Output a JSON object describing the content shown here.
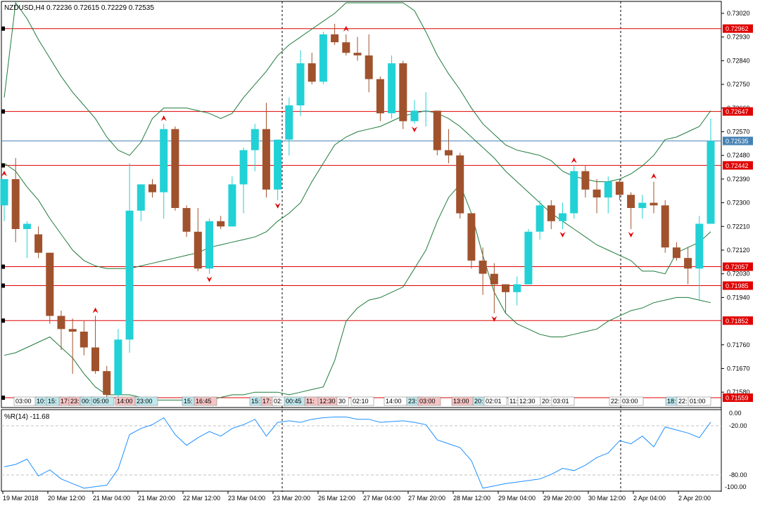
{
  "header": {
    "symbol_text": "NZDUSD,H4  0.72236 0.72615 0.72229 0.72535"
  },
  "indicator": {
    "label": "%R(14) -11.68",
    "scale_labels": [
      "0.00",
      "-20.00",
      "-80.00",
      "-100.00"
    ]
  },
  "colors": {
    "bull": "#22d1d6",
    "bear": "#a0522d",
    "band": "#1f7a3a",
    "hline": "#e00000",
    "bid_line": "#4682b4",
    "wpr_line": "#1e90ff",
    "badge_red": "#e00000",
    "badge_bid": "#4682b4"
  },
  "price_axis": {
    "labels": [
      "0.73020",
      "0.72930",
      "0.72840",
      "0.72750",
      "0.72660",
      "0.72570",
      "0.72480",
      "0.72390",
      "0.72300",
      "0.72210",
      "0.72120",
      "0.72030",
      "0.71940",
      "0.71760",
      "0.71670",
      "0.71580"
    ]
  },
  "badges": [
    {
      "text": "0.72962",
      "kind": "red"
    },
    {
      "text": "0.72647",
      "kind": "red"
    },
    {
      "text": "0.72535",
      "kind": "bid"
    },
    {
      "text": "0.72442",
      "kind": "red"
    },
    {
      "text": "0.72057",
      "kind": "red"
    },
    {
      "text": "0.71985",
      "kind": "red"
    },
    {
      "text": "0.71852",
      "kind": "red"
    },
    {
      "text": "0.71559",
      "kind": "red"
    }
  ],
  "time_axis": {
    "labels": [
      "19 Mar 2018",
      "20 Mar 12:00",
      "21 Mar 04:00",
      "21 Mar 20:00",
      "22 Mar 12:00",
      "23 Mar 04:00",
      "23 Mar 20:00",
      "26 Mar 12:00",
      "27 Mar 04:00",
      "27 Mar 20:00",
      "28 Mar 12:00",
      "29 Mar 04:00",
      "29 Mar 20:00",
      "30 Mar 12:00",
      "2 Apr 04:00",
      "2 Apr 20:00"
    ]
  },
  "session_tags": [
    {
      "text": "03:00",
      "c": "w"
    },
    {
      "text": "10:",
      "c": "b"
    },
    {
      "text": "15:",
      "c": "b"
    },
    {
      "text": "17:",
      "c": "r"
    },
    {
      "text": "23:",
      "c": "r"
    },
    {
      "text": "00:",
      "c": "b"
    },
    {
      "text": "05:00",
      "c": "b"
    },
    {
      "text": "14:00",
      "c": "r"
    },
    {
      "text": "23:00",
      "c": "b"
    },
    {
      "text": "15:",
      "c": "b"
    },
    {
      "text": "16:45",
      "c": "r"
    },
    {
      "text": "15:",
      "c": "b"
    },
    {
      "text": "17:",
      "c": "r"
    },
    {
      "text": "02:",
      "c": "w"
    },
    {
      "text": "00:45",
      "c": "b"
    },
    {
      "text": "11:",
      "c": "r"
    },
    {
      "text": "12:30",
      "c": "r"
    },
    {
      "text": "30",
      "c": "w"
    },
    {
      "text": "02:10",
      "c": "w"
    },
    {
      "text": "14:00",
      "c": "w"
    },
    {
      "text": "23:",
      "c": "b"
    },
    {
      "text": "03:00",
      "c": "r"
    },
    {
      "text": "13:00",
      "c": "r"
    },
    {
      "text": "20:",
      "c": "b"
    },
    {
      "text": "02:01",
      "c": "w"
    },
    {
      "text": "11:",
      "c": "w"
    },
    {
      "text": "12:30",
      "c": "w"
    },
    {
      "text": "20:",
      "c": "w"
    },
    {
      "text": "03:01",
      "c": "w"
    },
    {
      "text": "22:",
      "c": "w"
    },
    {
      "text": "03:00",
      "c": "w"
    },
    {
      "text": "18:",
      "c": "b"
    },
    {
      "text": "22:",
      "c": "w"
    },
    {
      "text": "01:00",
      "c": "w"
    }
  ],
  "chart_data": {
    "type": "candlestick",
    "symbol": "NZDUSD",
    "timeframe": "H4",
    "ylim": [
      0.71535,
      0.7306
    ],
    "horizontal_levels": [
      0.72962,
      0.72647,
      0.72442,
      0.72057,
      0.71985,
      0.71852,
      0.71559
    ],
    "bid": 0.72535,
    "candles": [
      {
        "o": 0.7229,
        "h": 0.7239,
        "l": 0.7223,
        "c": 0.7239
      },
      {
        "o": 0.7239,
        "h": 0.7247,
        "l": 0.7215,
        "c": 0.722
      },
      {
        "o": 0.722,
        "h": 0.7223,
        "l": 0.7209,
        "c": 0.7222
      },
      {
        "o": 0.7218,
        "h": 0.7221,
        "l": 0.7209,
        "c": 0.7211
      },
      {
        "o": 0.7211,
        "h": 0.7211,
        "l": 0.7184,
        "c": 0.7187
      },
      {
        "o": 0.7187,
        "h": 0.7189,
        "l": 0.7174,
        "c": 0.7182
      },
      {
        "o": 0.7182,
        "h": 0.7186,
        "l": 0.7165,
        "c": 0.7181
      },
      {
        "o": 0.7181,
        "h": 0.7185,
        "l": 0.7172,
        "c": 0.7175
      },
      {
        "o": 0.7175,
        "h": 0.7187,
        "l": 0.7165,
        "c": 0.7166
      },
      {
        "o": 0.7166,
        "h": 0.7168,
        "l": 0.7154,
        "c": 0.7157
      },
      {
        "o": 0.7157,
        "h": 0.7182,
        "l": 0.7156,
        "c": 0.7178
      },
      {
        "o": 0.7178,
        "h": 0.7245,
        "l": 0.7173,
        "c": 0.7227
      },
      {
        "o": 0.7227,
        "h": 0.7237,
        "l": 0.7223,
        "c": 0.7237
      },
      {
        "o": 0.7237,
        "h": 0.7239,
        "l": 0.7232,
        "c": 0.7234
      },
      {
        "o": 0.7234,
        "h": 0.726,
        "l": 0.7224,
        "c": 0.7258
      },
      {
        "o": 0.7258,
        "h": 0.7259,
        "l": 0.7227,
        "c": 0.7228
      },
      {
        "o": 0.7228,
        "h": 0.7229,
        "l": 0.7217,
        "c": 0.7219
      },
      {
        "o": 0.7219,
        "h": 0.7228,
        "l": 0.7204,
        "c": 0.7205
      },
      {
        "o": 0.7205,
        "h": 0.7224,
        "l": 0.7203,
        "c": 0.7223
      },
      {
        "o": 0.7223,
        "h": 0.7225,
        "l": 0.722,
        "c": 0.7221
      },
      {
        "o": 0.7221,
        "h": 0.724,
        "l": 0.7221,
        "c": 0.7237
      },
      {
        "o": 0.7237,
        "h": 0.7251,
        "l": 0.7226,
        "c": 0.725
      },
      {
        "o": 0.725,
        "h": 0.726,
        "l": 0.7242,
        "c": 0.7258
      },
      {
        "o": 0.7258,
        "h": 0.7268,
        "l": 0.7232,
        "c": 0.7235
      },
      {
        "o": 0.7235,
        "h": 0.7254,
        "l": 0.7231,
        "c": 0.7254
      },
      {
        "o": 0.7254,
        "h": 0.727,
        "l": 0.7248,
        "c": 0.7267
      },
      {
        "o": 0.7267,
        "h": 0.7288,
        "l": 0.7263,
        "c": 0.7283
      },
      {
        "o": 0.7283,
        "h": 0.7287,
        "l": 0.7275,
        "c": 0.7276
      },
      {
        "o": 0.7276,
        "h": 0.7295,
        "l": 0.7275,
        "c": 0.7294
      },
      {
        "o": 0.7294,
        "h": 0.7298,
        "l": 0.729,
        "c": 0.7291
      },
      {
        "o": 0.7291,
        "h": 0.7294,
        "l": 0.7286,
        "c": 0.7287
      },
      {
        "o": 0.7287,
        "h": 0.7293,
        "l": 0.7284,
        "c": 0.7286
      },
      {
        "o": 0.7286,
        "h": 0.7294,
        "l": 0.7272,
        "c": 0.7277
      },
      {
        "o": 0.7277,
        "h": 0.7278,
        "l": 0.7261,
        "c": 0.7264
      },
      {
        "o": 0.7264,
        "h": 0.7286,
        "l": 0.7262,
        "c": 0.7283
      },
      {
        "o": 0.7283,
        "h": 0.7284,
        "l": 0.7258,
        "c": 0.7261
      },
      {
        "o": 0.7261,
        "h": 0.7269,
        "l": 0.726,
        "c": 0.7265
      },
      {
        "o": 0.7265,
        "h": 0.7272,
        "l": 0.7259,
        "c": 0.7265
      },
      {
        "o": 0.7265,
        "h": 0.7265,
        "l": 0.7248,
        "c": 0.725
      },
      {
        "o": 0.725,
        "h": 0.7258,
        "l": 0.7245,
        "c": 0.7248
      },
      {
        "o": 0.7248,
        "h": 0.7249,
        "l": 0.7224,
        "c": 0.7226
      },
      {
        "o": 0.7226,
        "h": 0.7226,
        "l": 0.7205,
        "c": 0.7208
      },
      {
        "o": 0.7208,
        "h": 0.7213,
        "l": 0.7195,
        "c": 0.7203
      },
      {
        "o": 0.7203,
        "h": 0.7207,
        "l": 0.7188,
        "c": 0.7199
      },
      {
        "o": 0.7199,
        "h": 0.7199,
        "l": 0.7188,
        "c": 0.7196
      },
      {
        "o": 0.7196,
        "h": 0.7202,
        "l": 0.7191,
        "c": 0.7199
      },
      {
        "o": 0.7199,
        "h": 0.722,
        "l": 0.7199,
        "c": 0.7219
      },
      {
        "o": 0.7219,
        "h": 0.7231,
        "l": 0.7216,
        "c": 0.7229
      },
      {
        "o": 0.7229,
        "h": 0.7231,
        "l": 0.722,
        "c": 0.7223
      },
      {
        "o": 0.7223,
        "h": 0.723,
        "l": 0.722,
        "c": 0.7226
      },
      {
        "o": 0.7226,
        "h": 0.7244,
        "l": 0.7224,
        "c": 0.7242
      },
      {
        "o": 0.7242,
        "h": 0.7244,
        "l": 0.7232,
        "c": 0.7235
      },
      {
        "o": 0.7235,
        "h": 0.7239,
        "l": 0.7226,
        "c": 0.7232
      },
      {
        "o": 0.7232,
        "h": 0.724,
        "l": 0.7226,
        "c": 0.7238
      },
      {
        "o": 0.7238,
        "h": 0.7239,
        "l": 0.7231,
        "c": 0.7233
      },
      {
        "o": 0.7233,
        "h": 0.7234,
        "l": 0.722,
        "c": 0.7228
      },
      {
        "o": 0.7228,
        "h": 0.7233,
        "l": 0.7224,
        "c": 0.723
      },
      {
        "o": 0.723,
        "h": 0.7238,
        "l": 0.7226,
        "c": 0.7229
      },
      {
        "o": 0.7229,
        "h": 0.7231,
        "l": 0.7211,
        "c": 0.7213
      },
      {
        "o": 0.7213,
        "h": 0.7215,
        "l": 0.7208,
        "c": 0.7209
      },
      {
        "o": 0.7209,
        "h": 0.7213,
        "l": 0.7199,
        "c": 0.7205
      },
      {
        "o": 0.7205,
        "h": 0.7225,
        "l": 0.7193,
        "c": 0.7222
      },
      {
        "o": 0.7222,
        "h": 0.7262,
        "l": 0.7222,
        "c": 0.72535
      }
    ],
    "bollinger": {
      "upper": [
        0.727,
        0.7308,
        0.73,
        0.7292,
        0.7285,
        0.7278,
        0.7272,
        0.7267,
        0.7262,
        0.7255,
        0.725,
        0.7248,
        0.7253,
        0.7262,
        0.7266,
        0.7266,
        0.7266,
        0.7265,
        0.7264,
        0.7262,
        0.7264,
        0.727,
        0.7275,
        0.728,
        0.7286,
        0.729,
        0.7293,
        0.7296,
        0.7299,
        0.7302,
        0.7307,
        0.731,
        0.7312,
        0.7314,
        0.7316,
        0.7313,
        0.7303,
        0.7295,
        0.7286,
        0.7279,
        0.7273,
        0.7266,
        0.726,
        0.7256,
        0.7252,
        0.725,
        0.7249,
        0.7248,
        0.7246,
        0.7242,
        0.724,
        0.7239,
        0.7238,
        0.7238,
        0.7239,
        0.7241,
        0.7244,
        0.7248,
        0.7254,
        0.7255,
        0.7257,
        0.7259,
        0.7265
      ],
      "middle": [
        0.7245,
        0.7242,
        0.7236,
        0.7231,
        0.7224,
        0.7218,
        0.7212,
        0.7208,
        0.7206,
        0.7205,
        0.7205,
        0.7205,
        0.7206,
        0.7207,
        0.7208,
        0.7209,
        0.721,
        0.7211,
        0.7213,
        0.7214,
        0.7215,
        0.7216,
        0.7217,
        0.7219,
        0.7223,
        0.7226,
        0.723,
        0.7238,
        0.7245,
        0.7252,
        0.7255,
        0.7257,
        0.7258,
        0.7259,
        0.7261,
        0.7263,
        0.7264,
        0.7265,
        0.7264,
        0.7262,
        0.7259,
        0.7255,
        0.7251,
        0.7247,
        0.7242,
        0.7238,
        0.7234,
        0.723,
        0.7226,
        0.7223,
        0.722,
        0.7217,
        0.7214,
        0.7212,
        0.721,
        0.7208,
        0.7204,
        0.7204,
        0.7203,
        0.7211,
        0.7213,
        0.7215,
        0.7219
      ],
      "lower": [
        0.7172,
        0.7173,
        0.7175,
        0.7177,
        0.7179,
        0.7175,
        0.7171,
        0.7165,
        0.716,
        0.7157,
        0.7157,
        0.7157,
        0.7156,
        0.7155,
        0.7155,
        0.7155,
        0.7155,
        0.7155,
        0.7155,
        0.7156,
        0.7157,
        0.7157,
        0.7158,
        0.7158,
        0.7158,
        0.7157,
        0.7158,
        0.7159,
        0.716,
        0.717,
        0.7185,
        0.719,
        0.7193,
        0.7194,
        0.7196,
        0.7198,
        0.7205,
        0.7212,
        0.7223,
        0.7232,
        0.7237,
        0.7226,
        0.721,
        0.7196,
        0.7188,
        0.7184,
        0.7182,
        0.718,
        0.7179,
        0.7179,
        0.718,
        0.7181,
        0.7182,
        0.7185,
        0.7187,
        0.7189,
        0.719,
        0.7192,
        0.7193,
        0.7194,
        0.7194,
        0.7193,
        0.7192
      ]
    },
    "williams_r": {
      "period": 14,
      "ylim": [
        -100,
        0
      ],
      "values": [
        -70,
        -67,
        -60,
        -82,
        -74,
        -86,
        -92,
        -98,
        -96,
        -94,
        -73,
        -28,
        -20,
        -15,
        -6,
        -28,
        -42,
        -32,
        -24,
        -30,
        -20,
        -15,
        -8,
        -30,
        -12,
        -10,
        -12,
        -8,
        -6,
        -5,
        -5,
        -8,
        -8,
        -12,
        -11,
        -10,
        -12,
        -15,
        -35,
        -40,
        -45,
        -62,
        -98,
        -95,
        -92,
        -90,
        -88,
        -86,
        -80,
        -72,
        -75,
        -68,
        -58,
        -52,
        -36,
        -40,
        -30,
        -44,
        -18,
        -22,
        -26,
        -32,
        -11.68
      ]
    },
    "markers": [
      {
        "i": 0,
        "type": "up",
        "at": "high"
      },
      {
        "i": 8,
        "type": "up",
        "at": "high"
      },
      {
        "i": 14,
        "type": "up",
        "at": "high"
      },
      {
        "i": 18,
        "type": "down",
        "at": "low"
      },
      {
        "i": 24,
        "type": "down",
        "at": "low"
      },
      {
        "i": 30,
        "type": "up",
        "at": "high"
      },
      {
        "i": 36,
        "type": "down",
        "at": "low"
      },
      {
        "i": 43,
        "type": "down",
        "at": "low"
      },
      {
        "i": 50,
        "type": "up",
        "at": "high"
      },
      {
        "i": 49,
        "type": "down",
        "at": "low"
      },
      {
        "i": 55,
        "type": "down",
        "at": "low"
      },
      {
        "i": 57,
        "type": "up",
        "at": "high"
      }
    ]
  }
}
